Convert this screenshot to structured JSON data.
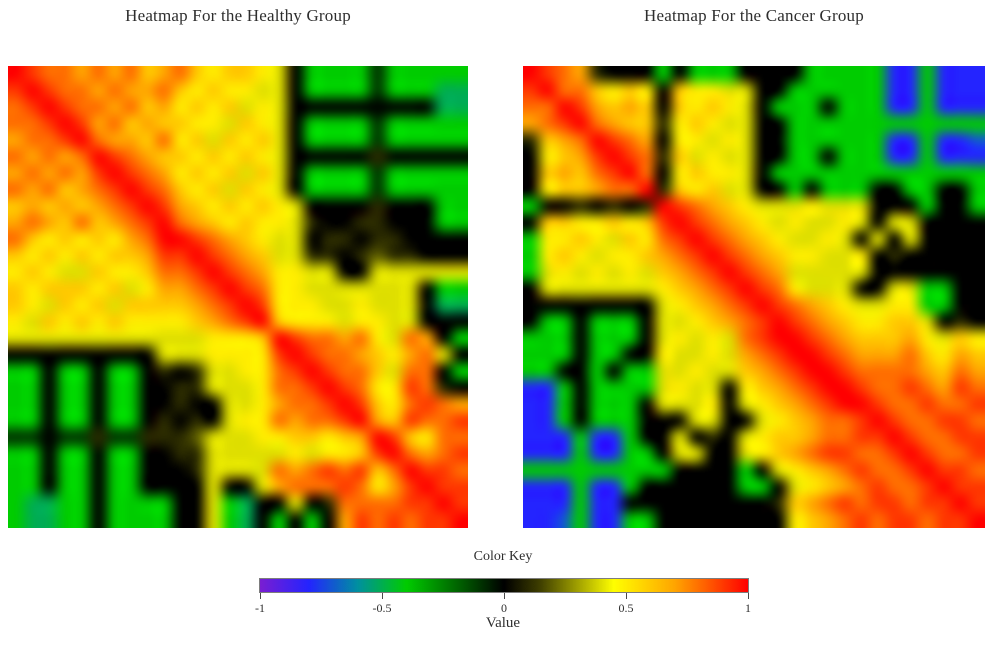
{
  "color_key": {
    "title": "Color Key",
    "axis_label": "Value",
    "ticks": [
      "-1",
      "-0.5",
      "0",
      "0.5",
      "1"
    ],
    "tick_values": [
      -1,
      -0.5,
      0,
      0.5,
      1
    ],
    "range": [
      -1,
      1
    ],
    "colorscale": [
      {
        "v": -1.0,
        "c": "#7a1ed2"
      },
      {
        "v": -0.8,
        "c": "#2424ff"
      },
      {
        "v": -0.6,
        "c": "#0090a0"
      },
      {
        "v": -0.4,
        "c": "#00cc00"
      },
      {
        "v": -0.15,
        "c": "#005000"
      },
      {
        "v": 0.0,
        "c": "#000000"
      },
      {
        "v": 0.15,
        "c": "#404000"
      },
      {
        "v": 0.45,
        "c": "#ffff00"
      },
      {
        "v": 0.7,
        "c": "#ffa500"
      },
      {
        "v": 1.0,
        "c": "#ff0000"
      }
    ]
  },
  "chart_data": [
    {
      "type": "heatmap",
      "title": "Heatmap For the Healthy Group",
      "group": "Healthy",
      "value_range": [
        -1,
        1
      ],
      "grid_size": 28,
      "encoding": "each char a..u is a correlation level: value=(charIndex-10)/10, a=-1.0 k=0.0 u=+1.0",
      "rows": [
        "utssrsrsqrsqpqqpokggggjggggg",
        "tutssrsrrsqpqppookggggjgggff",
        "stutssrsqrpqpqopokkkkkkkkkff",
        "sstutrsqrqqppoqpokggggjggggg",
        "rsstusrrqspqoqpqokggggjggggg",
        "srsrsutsrqqpqpqpokkkkklkkkkk",
        "rsrsrtutsrpqpqoqokggggjggggg",
        "srsqrstutsqpqoqpokggggjggggg",
        "qrqrqrstutrqpqpqpokkkklkkkgg",
        "rsrqsqrstusrqpqppolkkllkkkgg",
        "sqpqpqprsuutsrqpookllkllkkkk",
        "qpqpqpqqrttutsrqoollklmllkkk",
        "pqpooqppqsstutsrppookkoooooo",
        "qpqqqpqoprrstutsppoooooookgg",
        "qpoqpqoqqqqrstutpppoopoookff",
        "poqpqpqppppqrstuqpppoppookkk",
        "oooooooooooopppqutssrsposrkg",
        "kkkkkkkkkooopppptutssrqprsok",
        "ggkggkggklklooppstutssqosskg",
        "ggkggkggkkllooopsstutspptslk",
        "ggkggkggkklkkooprsstutqpstsr",
        "ggkggkggklklkoppsrssturqtsst",
        "jjkjjljjlllmoooppqqpqrutqpss",
        "ggkggkggkkllooooopoppqtusrst",
        "ggkggkggkkkloooosrststqsutts",
        "ggkggkggkkkkokkorssstsprtutt",
        "gffggkggggkkogfkkoklssssttut",
        "gffggkggggkkogfkgkgkrtststtu"
      ]
    },
    {
      "type": "heatmap",
      "title": "Heatmap For the Cancer Group",
      "group": "Cancer",
      "value_range": [
        -1,
        1
      ],
      "grid_size": 28,
      "encoding": "each char a..u is a correlation level: value=(charIndex-10)/10, a=-1.0 k=0.0 u=+1.0",
      "rows": [
        "utsrlkkkgkgggkkkkgggggccgccc",
        "tussqpqpkqppookkggggggccgccc",
        "ssutrqrqkqpqpokgggkgggccgccc",
        "rstusrqqlpqpookkgggggggggggg",
        "lqrsutsrkppopokkggggggccgccd",
        "kpqrtutslqopookkggkgggccgccc",
        "kqrqstuskpqppokggggggggggggg",
        "kpqqrssulqpqookkgkgggkkggkkg",
        "gkklklklutsrqpooopoookkkgkkg",
        "kqqppqpqtutsrqpopoopokookkkk",
        "gppqpoqpstutsrqpoopokokokkkk",
        "gpqpoppqrstutsrqppoopklkkkkk",
        "gopopopoqrstutsroooookkkkkkk",
        "kooooooopqrstutspoookkooggkk",
        "kkkkkkkkopqrstutsrqpooppggkk",
        "kggkgggkoopqrstutsrqppqqoklk",
        "gggkgggkopopostuutsrqqqrpoqp",
        "gggkggkkpooporstuutsrrrsqprq",
        "ggkkgkggoopooqrstuutssssrqsr",
        "ccgkggggopookpqrstuutsstsrts",
        "ccgkgggkooopkopqrstuutsstsst",
        "ccgkgggkkkookkopqrsstutsstts",
        "cccgccgkkoklkopqqrssttutsstt",
        "cccgccggkookkopqrsttsstutsst",
        "gggggggggkkkkgkopqrstsstutts",
        "cccgccgkkkkkkggkopqrstsstutt",
        "cccgcckkkkkkkkklqrststtsttut",
        "ccdgccggkkkkkkkkpqrststtsttu"
      ]
    }
  ]
}
